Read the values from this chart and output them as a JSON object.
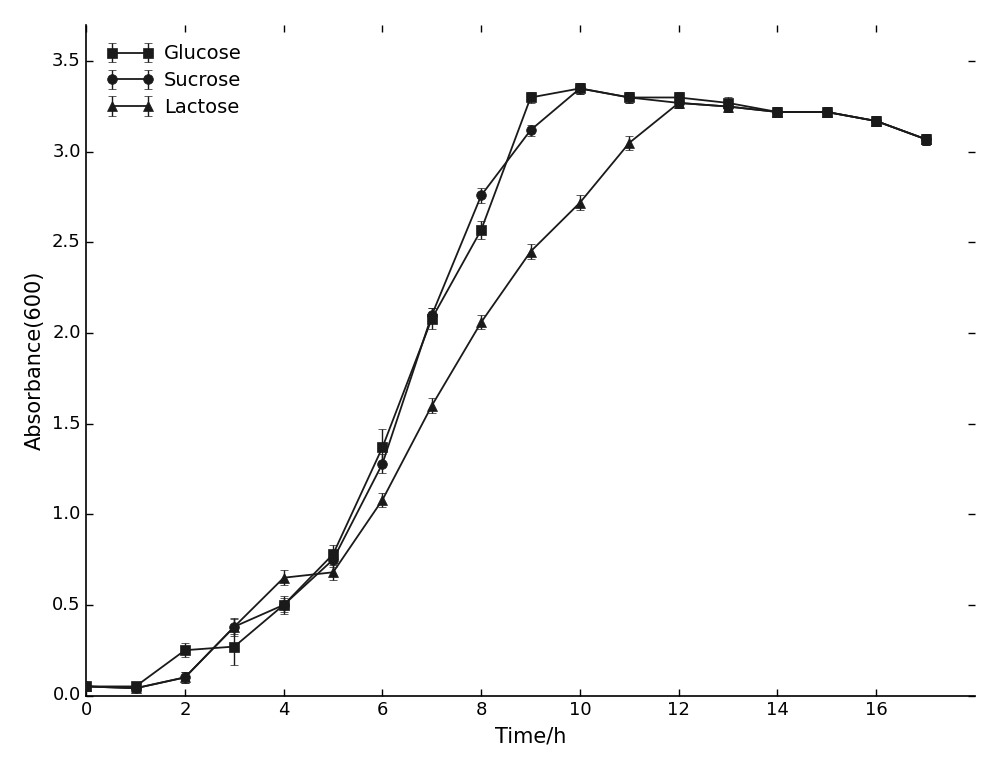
{
  "time": [
    0,
    1,
    2,
    3,
    4,
    5,
    6,
    7,
    8,
    9,
    10,
    11,
    12,
    13,
    14,
    15,
    16,
    17
  ],
  "glucose": [
    0.05,
    0.05,
    0.25,
    0.27,
    0.5,
    0.78,
    1.37,
    2.08,
    2.57,
    3.3,
    3.35,
    3.3,
    3.3,
    3.27,
    3.22,
    3.22,
    3.17,
    3.07
  ],
  "glucose_err": [
    0.02,
    0.02,
    0.04,
    0.1,
    0.05,
    0.05,
    0.1,
    0.06,
    0.05,
    0.03,
    0.03,
    0.03,
    0.03,
    0.03,
    0.03,
    0.03,
    0.03,
    0.03
  ],
  "sucrose": [
    0.05,
    0.04,
    0.1,
    0.38,
    0.5,
    0.75,
    1.28,
    2.1,
    2.76,
    3.12,
    3.35,
    3.3,
    3.27,
    3.25,
    3.22,
    3.22,
    3.17,
    3.07
  ],
  "sucrose_err": [
    0.02,
    0.02,
    0.03,
    0.05,
    0.04,
    0.04,
    0.05,
    0.04,
    0.04,
    0.03,
    0.03,
    0.03,
    0.03,
    0.03,
    0.03,
    0.03,
    0.03,
    0.03
  ],
  "lactose": [
    0.05,
    0.04,
    0.1,
    0.38,
    0.65,
    0.68,
    1.08,
    1.6,
    2.06,
    2.45,
    2.72,
    3.05,
    3.27,
    3.25,
    3.22,
    3.22,
    3.17,
    3.07
  ],
  "lactose_err": [
    0.02,
    0.02,
    0.03,
    0.04,
    0.04,
    0.04,
    0.04,
    0.04,
    0.04,
    0.04,
    0.04,
    0.04,
    0.03,
    0.03,
    0.03,
    0.03,
    0.03,
    0.03
  ],
  "xlabel": "Time/h",
  "ylabel": "Absorbance(600)",
  "xlim": [
    0,
    18
  ],
  "ylim": [
    0,
    3.7
  ],
  "xticks": [
    0,
    2,
    4,
    6,
    8,
    10,
    12,
    14,
    16
  ],
  "yticks": [
    0.0,
    0.5,
    1.0,
    1.5,
    2.0,
    2.5,
    3.0,
    3.5
  ],
  "legend_labels": [
    "Glucose",
    "Sucrose",
    "Lactose"
  ],
  "line_color": "#1a1a1a",
  "xlabel_fontsize": 15,
  "ylabel_fontsize": 15,
  "tick_fontsize": 13,
  "legend_fontsize": 14
}
